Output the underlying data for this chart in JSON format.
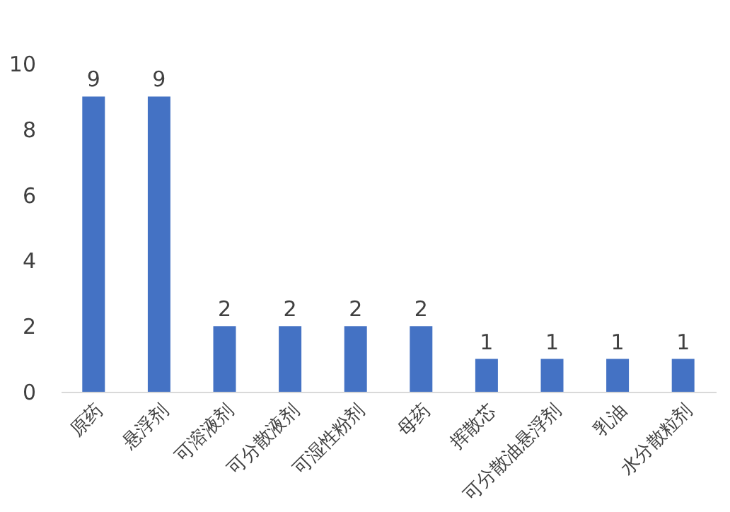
{
  "chart_data": {
    "type": "bar",
    "categories": [
      "原药",
      "悬浮剂",
      "可溶液剂",
      "可分散液剂",
      "可湿性粉剂",
      "母药",
      "挥散芯",
      "可分散油悬浮剂",
      "乳油",
      "水分散粒剂"
    ],
    "values": [
      9,
      9,
      2,
      2,
      2,
      2,
      1,
      1,
      1,
      1
    ],
    "color": "#4472c4",
    "ylim": [
      0,
      10
    ],
    "yticks": [
      0,
      2,
      4,
      6,
      8,
      10
    ],
    "data_labels": true,
    "grid": false
  }
}
